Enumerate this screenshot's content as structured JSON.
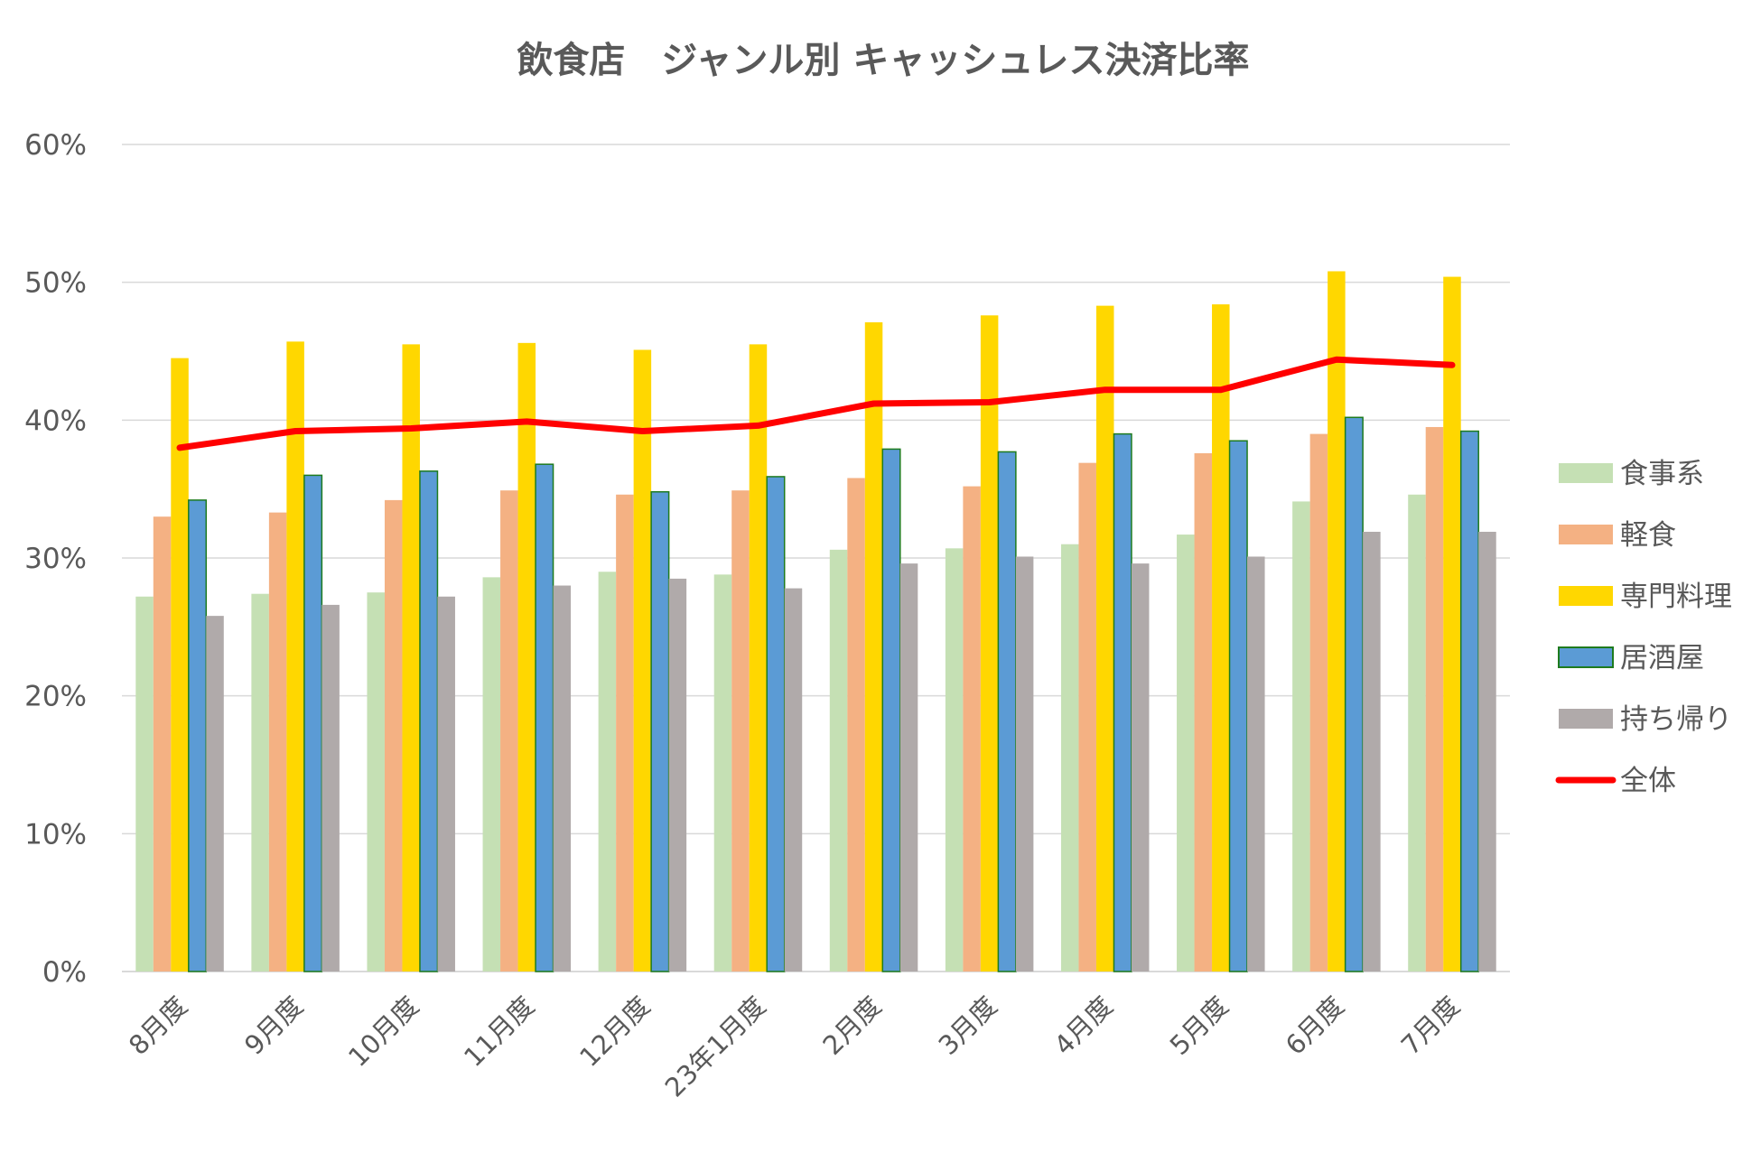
{
  "chart_data": {
    "type": "bar",
    "title": "飲食店　ジャンル別 キャッシュレス決済比率",
    "xlabel": "",
    "ylabel": "",
    "ylim": [
      0,
      0.6
    ],
    "yticks": [
      0,
      0.1,
      0.2,
      0.3,
      0.4,
      0.5,
      0.6
    ],
    "ytick_labels": [
      "0%",
      "10%",
      "20%",
      "30%",
      "40%",
      "50%",
      "60%"
    ],
    "grid": true,
    "legend_position": "right",
    "categories": [
      "8月度",
      "9月度",
      "10月度",
      "11月度",
      "12月度",
      "23年1月度",
      "2月度",
      "3月度",
      "4月度",
      "5月度",
      "6月度",
      "7月度"
    ],
    "series": [
      {
        "name": "食事系",
        "type": "bar",
        "color": "#c5e0b4",
        "values": [
          0.272,
          0.274,
          0.275,
          0.286,
          0.29,
          0.288,
          0.306,
          0.307,
          0.31,
          0.317,
          0.341,
          0.346
        ]
      },
      {
        "name": "軽食",
        "type": "bar",
        "color": "#f4b183",
        "values": [
          0.33,
          0.333,
          0.342,
          0.349,
          0.346,
          0.349,
          0.358,
          0.352,
          0.369,
          0.376,
          0.39,
          0.395
        ]
      },
      {
        "name": "専門料理",
        "type": "bar",
        "color": "#ffd700",
        "values": [
          0.445,
          0.457,
          0.455,
          0.456,
          0.451,
          0.455,
          0.471,
          0.476,
          0.483,
          0.484,
          0.508,
          0.504
        ]
      },
      {
        "name": "居酒屋",
        "type": "bar",
        "color": "#5b9bd5",
        "border": "#1e7b1e",
        "values": [
          0.342,
          0.36,
          0.363,
          0.368,
          0.348,
          0.359,
          0.379,
          0.377,
          0.39,
          0.385,
          0.402,
          0.392
        ]
      },
      {
        "name": "持ち帰り",
        "type": "bar",
        "color": "#b0aaaa",
        "values": [
          0.258,
          0.266,
          0.272,
          0.28,
          0.285,
          0.278,
          0.296,
          0.301,
          0.296,
          0.301,
          0.319,
          0.319
        ]
      },
      {
        "name": "全体",
        "type": "line",
        "color": "#ff0000",
        "values": [
          0.38,
          0.392,
          0.394,
          0.399,
          0.392,
          0.396,
          0.412,
          0.413,
          0.422,
          0.422,
          0.444,
          0.44
        ]
      }
    ]
  }
}
